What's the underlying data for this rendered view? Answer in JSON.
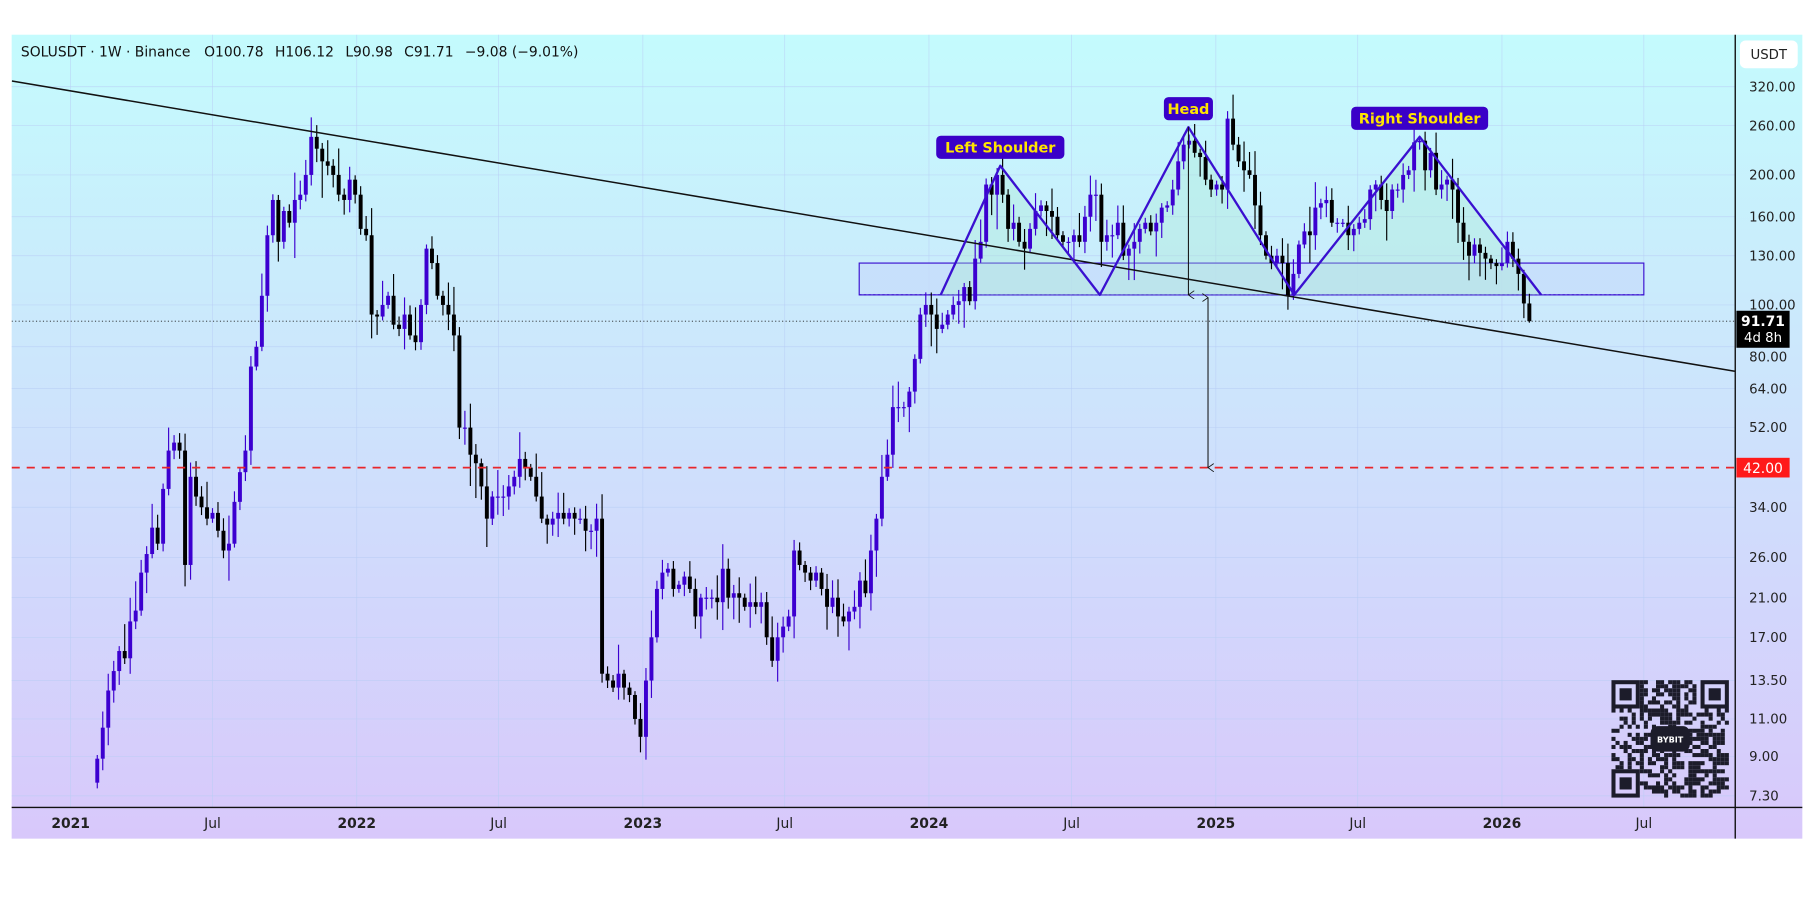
{
  "header": {
    "symbol_line": "SOLUSDT · 1W · Binance",
    "open": "O100.78",
    "high": "H106.12",
    "low": "L90.98",
    "close": "C91.71",
    "change": "−9.08 (−9.01%)"
  },
  "price_axis": {
    "currency_button": "USDT",
    "last_price_label": "91.71",
    "countdown_label": "4d 8h",
    "target_label": "42.00"
  },
  "watermark": {
    "logo_text": "BYBIT"
  },
  "colors": {
    "up_candle": "#3c00d0",
    "down_candle": "#000000",
    "pattern_line": "#3a10d0",
    "label_bg": "#3a00c8",
    "label_text": "#ffe400",
    "target_line": "#e8262b",
    "zone_fill": "#c5dcfb",
    "bg_top": "#c4fbfd",
    "bg_bottom": "#d8c8fb"
  },
  "chart_data": {
    "type": "candlestick",
    "title": "SOLUSDT · 1W · Binance",
    "scale": "log",
    "ylim": [
      7.3,
      330
    ],
    "xlim": [
      "2021-01-01",
      "2026-10-31"
    ],
    "grid": true,
    "interval": "1W",
    "first_week": "2021-02-01",
    "weekly_closes": [
      8.9,
      10.5,
      12.8,
      14.2,
      15.8,
      15.2,
      18.5,
      19.6,
      24.0,
      26.5,
      30.5,
      28.0,
      37.5,
      46,
      48,
      46,
      25,
      40,
      36,
      34,
      32,
      33,
      30,
      27,
      28,
      35,
      41,
      46,
      72,
      80,
      105,
      145,
      175,
      140,
      165,
      155,
      175,
      180,
      200,
      245,
      230,
      215,
      210,
      200,
      180,
      175,
      195,
      180,
      150,
      145,
      95,
      94,
      100,
      105,
      90,
      88,
      95,
      85,
      82,
      100,
      135,
      125,
      105,
      100,
      95,
      85,
      52,
      52,
      45,
      43,
      38,
      32,
      36,
      36,
      36,
      38,
      40,
      44,
      42,
      40,
      36,
      32,
      31,
      32,
      33,
      32,
      33,
      32,
      32,
      30,
      30,
      32,
      14,
      13.5,
      13,
      14,
      13,
      12.5,
      11,
      10,
      13.5,
      17,
      22,
      24,
      24.5,
      22,
      22.5,
      23.5,
      22,
      19,
      21,
      21,
      21,
      20.5,
      24.5,
      21,
      21.5,
      21,
      20,
      20.5,
      20,
      20.5,
      17,
      15,
      17,
      18,
      19,
      27,
      25,
      24,
      23,
      24,
      22,
      20,
      21,
      19,
      18.5,
      19.5,
      20,
      23,
      21.5,
      27,
      32,
      40,
      45,
      58,
      58,
      58,
      63,
      75,
      95,
      100,
      95,
      88,
      90,
      95,
      100,
      102,
      110,
      102,
      128,
      140,
      190,
      180,
      200,
      180,
      150,
      155,
      140,
      135,
      150,
      165,
      170,
      165,
      160,
      145,
      140,
      140,
      145,
      140,
      160,
      180,
      180,
      140,
      145,
      145,
      155,
      130,
      135,
      140,
      150,
      155,
      148,
      155,
      168,
      170,
      185,
      215,
      235,
      240,
      225,
      220,
      195,
      185,
      190,
      185,
      270,
      235,
      215,
      205,
      200,
      170,
      145,
      130,
      125,
      130,
      125,
      105,
      118,
      138,
      148,
      145,
      168,
      172,
      175,
      155,
      155,
      155,
      145,
      150,
      155,
      158,
      185,
      190,
      175,
      165,
      185,
      185,
      200,
      205,
      238,
      240,
      205,
      225,
      185,
      190,
      195,
      185,
      155,
      140,
      130,
      138,
      132,
      128,
      125,
      123,
      125,
      140,
      128,
      118,
      100.79,
      91.71
    ],
    "last_candle": {
      "open": 100.78,
      "high": 106.12,
      "low": 90.98,
      "close": 91.71,
      "change": -9.08,
      "change_pct": -9.01
    },
    "y_ticks": [
      "320.00",
      "260.00",
      "200.00",
      "160.00",
      "130.00",
      "100.00",
      "80.00",
      "64.00",
      "52.00",
      "34.00",
      "26.00",
      "21.00",
      "17.00",
      "13.50",
      "11.00",
      "9.00",
      "7.30"
    ],
    "x_ticks": [
      {
        "label": "2021",
        "date": "2021-01-01",
        "year": true
      },
      {
        "label": "Jul",
        "date": "2021-07-01",
        "year": false
      },
      {
        "label": "2022",
        "date": "2022-01-01",
        "year": true
      },
      {
        "label": "Jul",
        "date": "2022-07-01",
        "year": false
      },
      {
        "label": "2023",
        "date": "2023-01-01",
        "year": true
      },
      {
        "label": "Jul",
        "date": "2023-07-01",
        "year": false
      },
      {
        "label": "2024",
        "date": "2024-01-01",
        "year": true
      },
      {
        "label": "Jul",
        "date": "2024-07-01",
        "year": false
      },
      {
        "label": "2025",
        "date": "2025-01-01",
        "year": true
      },
      {
        "label": "Jul",
        "date": "2025-07-01",
        "year": false
      },
      {
        "label": "2026",
        "date": "2026-01-01",
        "year": true
      },
      {
        "label": "Jul",
        "date": "2026-07-01",
        "year": false
      }
    ],
    "annotations": {
      "trendline": {
        "from": [
          "2020-10-18",
          330
        ],
        "to": [
          "2026-10-25",
          70.2
        ]
      },
      "target_level": 42,
      "neckline_zone": {
        "from": "2023-10-04",
        "to": "2026-07-01",
        "low": 105.5,
        "high": 125
      },
      "head_and_shoulders": [
        [
          "2024-01-16",
          105.5
        ],
        [
          "2024-04-01",
          210
        ],
        [
          "2024-08-06",
          105.5
        ],
        [
          "2024-11-27",
          258
        ],
        [
          "2025-04-11",
          105.5
        ],
        [
          "2025-09-18",
          245
        ],
        [
          "2026-02-20",
          105.5
        ]
      ],
      "labels": [
        {
          "text": "Left Shoulder",
          "date": "2024-04-01",
          "price": 210
        },
        {
          "text": "Head",
          "date": "2024-11-27",
          "price": 258
        },
        {
          "text": "Right Shoulder",
          "date": "2025-09-18",
          "price": 245
        }
      ],
      "measure_arrows": [
        {
          "date": "2024-11-27",
          "from": 258,
          "to": 105.5,
          "heads": "end"
        },
        {
          "date": "2024-12-22",
          "from": 104,
          "to": 42,
          "heads": "both"
        }
      ]
    }
  }
}
